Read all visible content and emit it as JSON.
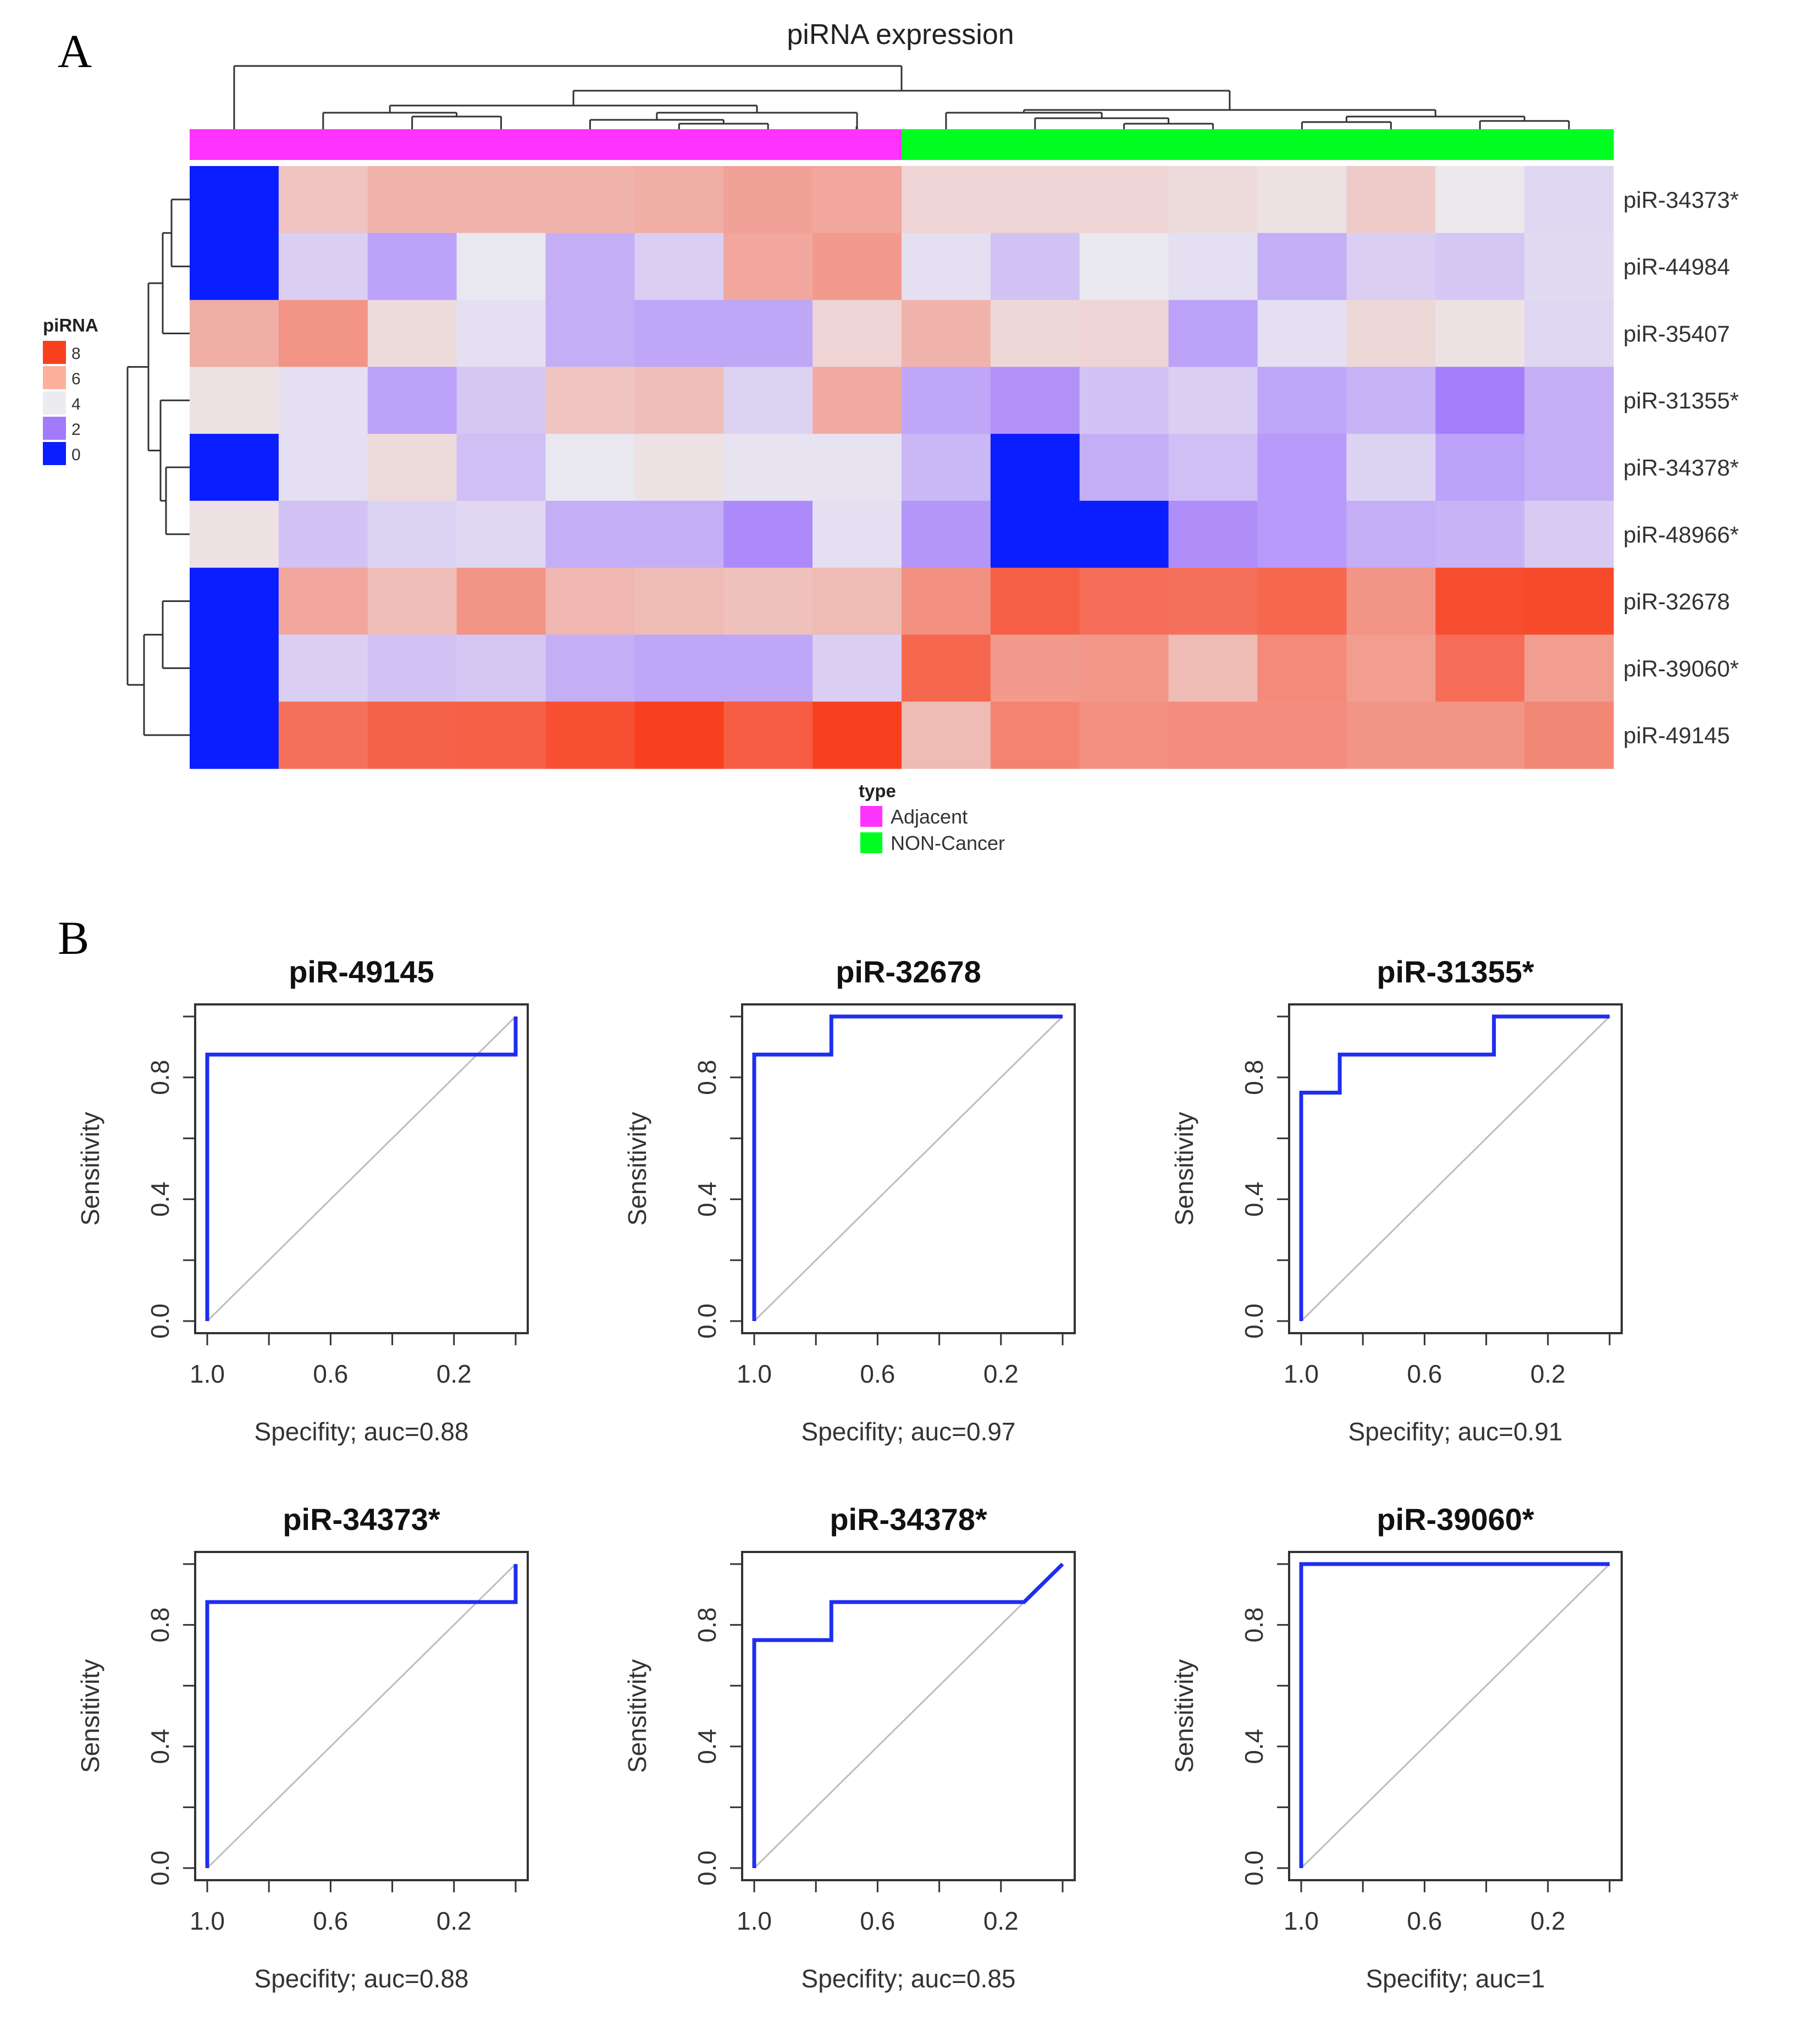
{
  "panel_labels": {
    "a": "A",
    "b": "B"
  },
  "colors": {
    "adjacent": "#ff33ff",
    "non_cancer": "#00ff21",
    "roc_line": "#1e2ef0",
    "diagonal": "#bdbdbd",
    "scale": [
      "#0a1eff",
      "#a27afc",
      "#ecebf0",
      "#fdb09c",
      "#f8401f"
    ]
  },
  "chart_data": [
    {
      "type": "heatmap",
      "title": "piRNA expression",
      "rows": [
        "piR-34373*",
        "piR-44984",
        "piR-35407",
        "piR-31355*",
        "piR-34378*",
        "piR-48966*",
        "piR-32678",
        "piR-39060*",
        "piR-49145"
      ],
      "column_groups": [
        "Adjacent",
        "Adjacent",
        "Adjacent",
        "Adjacent",
        "Adjacent",
        "Adjacent",
        "Adjacent",
        "Adjacent",
        "NON-Cancer",
        "NON-Cancer",
        "NON-Cancer",
        "NON-Cancer",
        "NON-Cancer",
        "NON-Cancer",
        "NON-Cancer",
        "NON-Cancer"
      ],
      "values": [
        [
          0,
          5.5,
          6.0,
          6.0,
          6.0,
          6.2,
          6.6,
          6.4,
          5.0,
          5.0,
          5.0,
          4.8,
          4.6,
          5.3,
          4.4,
          3.8
        ],
        [
          0,
          3.6,
          2.5,
          4.2,
          2.8,
          3.6,
          6.4,
          6.8,
          4.0,
          3.3,
          4.2,
          4.0,
          2.8,
          3.6,
          3.4,
          3.9
        ],
        [
          6.2,
          7.0,
          4.8,
          4.0,
          2.8,
          2.6,
          2.6,
          5.0,
          6.0,
          4.9,
          5.0,
          2.5,
          4.0,
          4.9,
          4.6,
          3.8
        ],
        [
          4.6,
          4.0,
          2.5,
          3.4,
          5.5,
          5.7,
          3.7,
          6.3,
          2.6,
          2.1,
          3.3,
          3.6,
          2.6,
          2.9,
          1.6,
          2.8
        ],
        [
          0,
          4.0,
          4.8,
          3.2,
          4.2,
          4.6,
          4.1,
          4.1,
          3.0,
          0,
          2.8,
          3.2,
          2.3,
          3.7,
          2.5,
          2.8
        ],
        [
          4.6,
          3.3,
          3.7,
          3.8,
          2.8,
          2.8,
          1.9,
          4.0,
          2.2,
          0,
          0,
          2.0,
          2.3,
          2.8,
          2.9,
          3.5
        ],
        [
          0,
          6.4,
          5.7,
          7.0,
          5.9,
          5.8,
          5.6,
          5.8,
          7.1,
          8.6,
          8.2,
          8.1,
          8.4,
          7.0,
          9.2,
          9.3
        ],
        [
          0,
          3.6,
          3.3,
          3.4,
          2.8,
          2.6,
          2.6,
          3.6,
          8.4,
          6.8,
          6.9,
          5.8,
          7.3,
          6.7,
          8.2,
          6.7
        ],
        [
          0,
          8.1,
          8.5,
          8.6,
          9.1,
          9.6,
          8.7,
          9.6,
          5.8,
          7.5,
          7.1,
          7.2,
          7.2,
          7.0,
          7.0,
          7.4
        ]
      ],
      "legend": {
        "title": "piRNA",
        "ticks": [
          "8",
          "6",
          "4",
          "2",
          "0"
        ]
      },
      "annotation_legend": {
        "title": "type",
        "entries": [
          "Adjacent",
          "NON-Cancer"
        ]
      }
    },
    {
      "type": "line",
      "title": "piR-49145",
      "xlabel": "Specifity; auc=0.88",
      "ylabel": "Sensitivity",
      "xlim": [
        1.0,
        0.0
      ],
      "ylim": [
        0,
        1
      ],
      "xtick_labels": [
        "1.0",
        "0.6",
        "0.2"
      ],
      "ytick_labels": [
        "0.0",
        "0.4",
        "0.8"
      ],
      "x": [
        1.0,
        1.0,
        0.0,
        0.0
      ],
      "y": [
        0.0,
        0.875,
        0.875,
        1.0
      ]
    },
    {
      "type": "line",
      "title": "piR-32678",
      "xlabel": "Specifity; auc=0.97",
      "ylabel": "Sensitivity",
      "xlim": [
        1.0,
        0.0
      ],
      "ylim": [
        0,
        1
      ],
      "xtick_labels": [
        "1.0",
        "0.6",
        "0.2"
      ],
      "ytick_labels": [
        "0.0",
        "0.4",
        "0.8"
      ],
      "x": [
        1.0,
        1.0,
        0.75,
        0.75,
        0.0
      ],
      "y": [
        0.0,
        0.875,
        0.875,
        1.0,
        1.0
      ]
    },
    {
      "type": "line",
      "title": "piR-31355*",
      "xlabel": "Specifity; auc=0.91",
      "ylabel": "Sensitivity",
      "xlim": [
        1.0,
        0.0
      ],
      "ylim": [
        0,
        1
      ],
      "xtick_labels": [
        "1.0",
        "0.6",
        "0.2"
      ],
      "ytick_labels": [
        "0.0",
        "0.4",
        "0.8"
      ],
      "x": [
        1.0,
        1.0,
        0.875,
        0.875,
        0.375,
        0.375,
        0.0
      ],
      "y": [
        0.0,
        0.75,
        0.75,
        0.875,
        0.875,
        1.0,
        1.0
      ]
    },
    {
      "type": "line",
      "title": "piR-34373*",
      "xlabel": "Specifity; auc=0.88",
      "ylabel": "Sensitivity",
      "xlim": [
        1.0,
        0.0
      ],
      "ylim": [
        0,
        1
      ],
      "xtick_labels": [
        "1.0",
        "0.6",
        "0.2"
      ],
      "ytick_labels": [
        "0.0",
        "0.4",
        "0.8"
      ],
      "x": [
        1.0,
        1.0,
        0.0,
        0.0
      ],
      "y": [
        0.0,
        0.875,
        0.875,
        1.0
      ]
    },
    {
      "type": "line",
      "title": "piR-34378*",
      "xlabel": "Specifity; auc=0.85",
      "ylabel": "Sensitivity",
      "xlim": [
        1.0,
        0.0
      ],
      "ylim": [
        0,
        1
      ],
      "xtick_labels": [
        "1.0",
        "0.6",
        "0.2"
      ],
      "ytick_labels": [
        "0.0",
        "0.4",
        "0.8"
      ],
      "x": [
        1.0,
        1.0,
        0.75,
        0.75,
        0.125,
        0.0
      ],
      "y": [
        0.0,
        0.75,
        0.75,
        0.875,
        0.875,
        1.0
      ]
    },
    {
      "type": "line",
      "title": "piR-39060*",
      "xlabel": "Specifity; auc=1",
      "ylabel": "Sensitivity",
      "xlim": [
        1.0,
        0.0
      ],
      "ylim": [
        0,
        1
      ],
      "xtick_labels": [
        "1.0",
        "0.6",
        "0.2"
      ],
      "ytick_labels": [
        "0.0",
        "0.4",
        "0.8"
      ],
      "x": [
        1.0,
        1.0,
        0.0
      ],
      "y": [
        0.0,
        1.0,
        1.0
      ]
    }
  ]
}
